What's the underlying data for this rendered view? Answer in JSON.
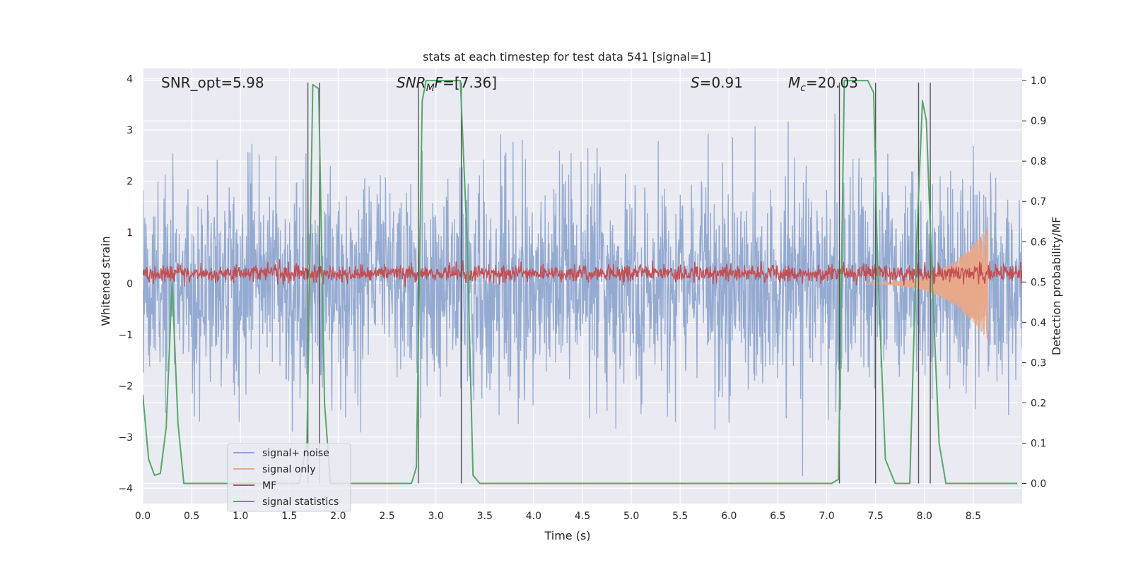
{
  "chart_data": {
    "type": "line",
    "title": "stats at each timestep for test data 541 [signal=1]",
    "xlabel": "Time (s)",
    "ylabel_left": "Whitened strain",
    "ylabel_right": "Detection probability/MF",
    "xlim": [
      0.0,
      9.0
    ],
    "ylim_left": [
      -4.3,
      4.2
    ],
    "ylim_right": [
      -0.05,
      1.03
    ],
    "x_ticks": [
      "0.0",
      "0.5",
      "1.0",
      "1.5",
      "2.0",
      "2.5",
      "3.0",
      "3.5",
      "4.0",
      "4.5",
      "5.0",
      "5.5",
      "6.0",
      "6.5",
      "7.0",
      "7.5",
      "8.0",
      "8.5"
    ],
    "y_ticks_left": [
      "−4",
      "−3",
      "−2",
      "−1",
      "0",
      "1",
      "2",
      "3",
      "4"
    ],
    "y_ticks_right": [
      "0.0",
      "0.1",
      "0.2",
      "0.3",
      "0.4",
      "0.5",
      "0.6",
      "0.7",
      "0.8",
      "0.9",
      "1.0"
    ],
    "grid": true,
    "legend_position": "lower-left",
    "annotations": [
      {
        "id": "snr-opt",
        "text": "SNR_opt=5.98"
      },
      {
        "id": "snr-mf",
        "text": "=[7.36]",
        "math_base": "SNR",
        "math_sub": "M",
        "math_tail": "F"
      },
      {
        "id": "s",
        "text": "=0.91",
        "math_base": "S"
      },
      {
        "id": "mc",
        "text": "=20.03",
        "math_base": "M",
        "math_sub": "c"
      }
    ],
    "series": [
      {
        "name": "signal+ noise",
        "color": "#8fa6cf",
        "axis": "left",
        "style": "noise",
        "amplitude_range": [
          -4.0,
          3.8
        ]
      },
      {
        "name": "signal only",
        "color": "#e8a98a",
        "axis": "left",
        "style": "chirp",
        "chirp_start_x": 7.4,
        "chirp_end_x": 8.65,
        "peak_amplitude": 1.1
      },
      {
        "name": "MF",
        "color": "#c44e52",
        "axis": "left",
        "style": "band",
        "center": 0.2,
        "amplitude": 0.15
      },
      {
        "name": "signal statistics",
        "color": "#55a868",
        "axis": "right",
        "x": [
          0.0,
          0.06,
          0.12,
          0.18,
          0.24,
          0.3,
          0.36,
          0.42,
          0.48,
          1.6,
          1.68,
          1.74,
          1.8,
          1.86,
          1.92,
          2.0,
          2.75,
          2.8,
          2.86,
          2.9,
          3.25,
          3.32,
          3.38,
          3.45,
          7.05,
          7.12,
          7.18,
          7.3,
          7.42,
          7.48,
          7.52,
          7.6,
          7.7,
          7.85,
          7.92,
          7.98,
          8.02,
          8.08,
          8.15,
          8.22,
          8.3,
          8.95
        ],
        "values": [
          0.22,
          0.06,
          0.02,
          0.025,
          0.14,
          0.5,
          0.15,
          0.0,
          0.0,
          0.0,
          0.1,
          0.99,
          0.98,
          0.2,
          0.0,
          0.0,
          0.0,
          0.04,
          0.95,
          1.0,
          1.0,
          0.6,
          0.02,
          0.0,
          0.0,
          0.01,
          1.0,
          1.0,
          1.0,
          0.97,
          0.55,
          0.06,
          0.0,
          0.0,
          0.6,
          0.95,
          0.9,
          0.5,
          0.1,
          0.0,
          0.0,
          0.0
        ]
      },
      {
        "name": "",
        "color": "#555555",
        "axis": "left",
        "style": "vlines",
        "x": [
          1.69,
          1.81,
          2.82,
          3.26,
          7.13,
          7.5,
          7.94,
          8.06
        ]
      }
    ]
  }
}
